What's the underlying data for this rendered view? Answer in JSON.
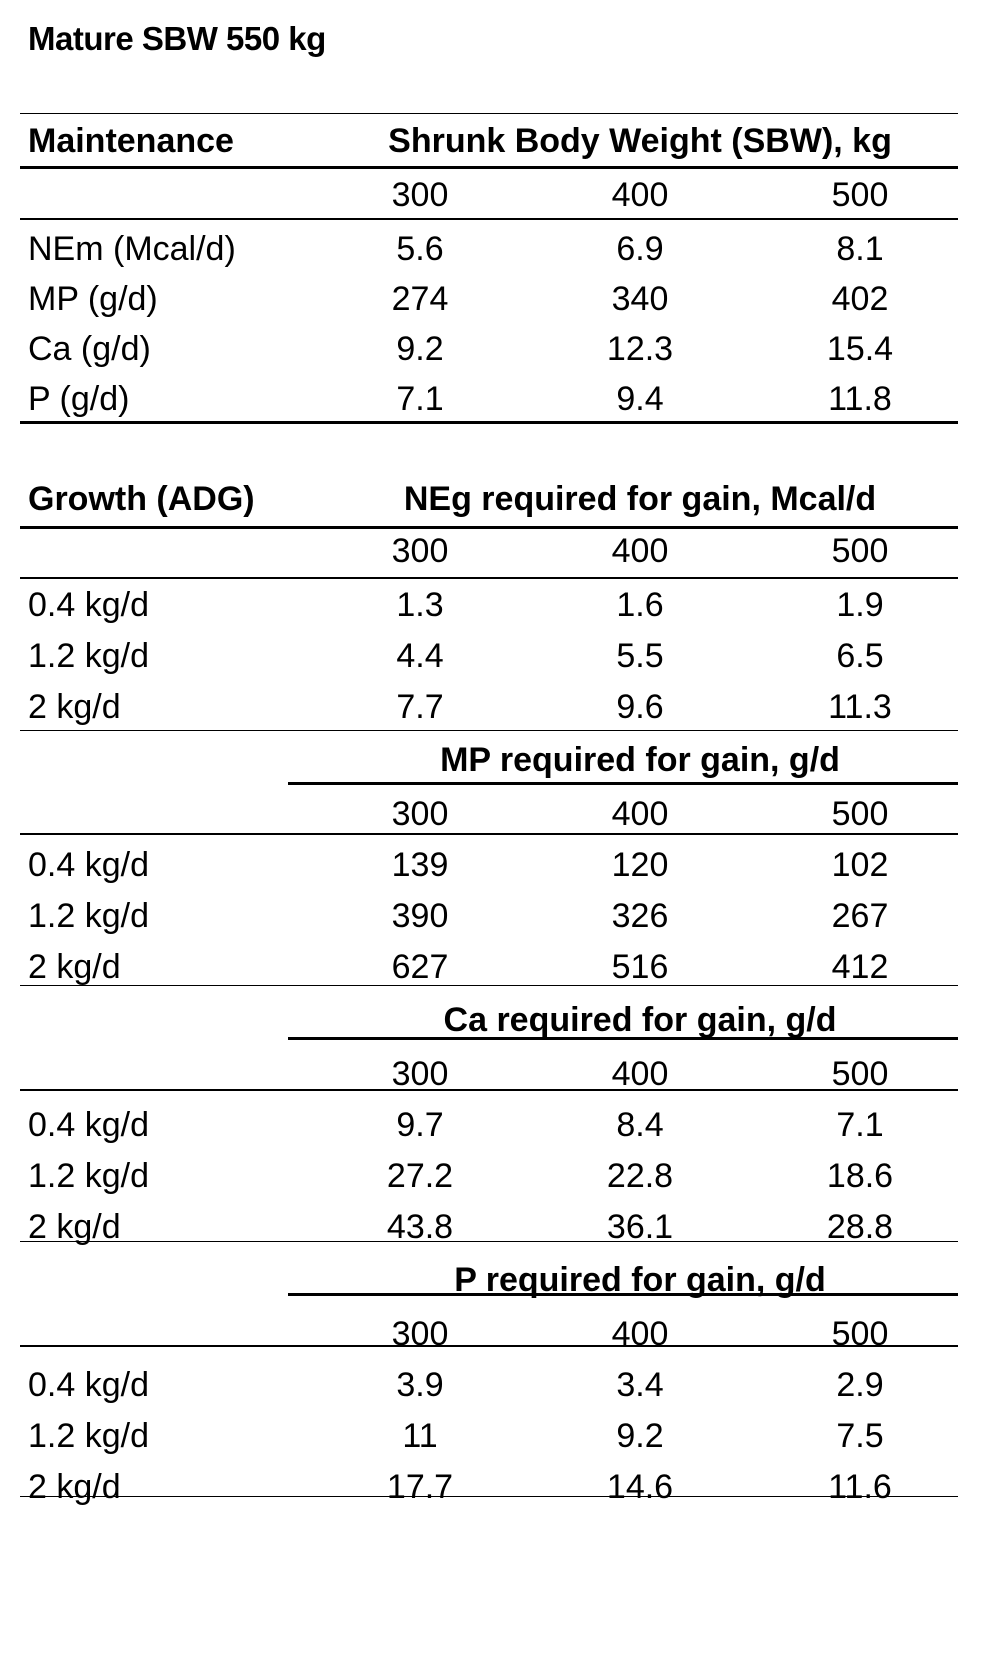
{
  "title": "Mature SBW 550 kg",
  "maintenance": {
    "row_label": "Maintenance",
    "header": "Shrunk Body Weight (SBW), kg",
    "weights": [
      "300",
      "400",
      "500"
    ],
    "rows": [
      {
        "label": "NEm (Mcal/d)",
        "values": [
          "5.6",
          "6.9",
          "8.1"
        ]
      },
      {
        "label": "MP (g/d)",
        "values": [
          "274",
          "340",
          "402"
        ]
      },
      {
        "label": "Ca (g/d)",
        "values": [
          "9.2",
          "12.3",
          "15.4"
        ]
      },
      {
        "label": "P (g/d)",
        "values": [
          "7.1",
          "9.4",
          "11.8"
        ]
      }
    ]
  },
  "growth": {
    "row_label": "Growth (ADG)",
    "sections": [
      {
        "header": "NEg required for gain, Mcal/d",
        "weights": [
          "300",
          "400",
          "500"
        ],
        "rows": [
          {
            "label": "0.4 kg/d",
            "values": [
              "1.3",
              "1.6",
              "1.9"
            ]
          },
          {
            "label": "1.2 kg/d",
            "values": [
              "4.4",
              "5.5",
              "6.5"
            ]
          },
          {
            "label": "2 kg/d",
            "values": [
              "7.7",
              "9.6",
              "11.3"
            ]
          }
        ]
      },
      {
        "header": "MP required for gain, g/d",
        "weights": [
          "300",
          "400",
          "500"
        ],
        "rows": [
          {
            "label": "0.4 kg/d",
            "values": [
              "139",
              "120",
              "102"
            ]
          },
          {
            "label": "1.2 kg/d",
            "values": [
              "390",
              "326",
              "267"
            ]
          },
          {
            "label": "2 kg/d",
            "values": [
              "627",
              "516",
              "412"
            ]
          }
        ]
      },
      {
        "header": "Ca required for gain, g/d",
        "weights": [
          "300",
          "400",
          "500"
        ],
        "rows": [
          {
            "label": "0.4 kg/d",
            "values": [
              "9.7",
              "8.4",
              "7.1"
            ]
          },
          {
            "label": "1.2 kg/d",
            "values": [
              "27.2",
              "22.8",
              "18.6"
            ]
          },
          {
            "label": "2 kg/d",
            "values": [
              "43.8",
              "36.1",
              "28.8"
            ]
          }
        ]
      },
      {
        "header": "P required for gain, g/d",
        "weights": [
          "300",
          "400",
          "500"
        ],
        "rows": [
          {
            "label": "0.4 kg/d",
            "values": [
              "3.9",
              "3.4",
              "2.9"
            ]
          },
          {
            "label": "1.2 kg/d",
            "values": [
              "11",
              "9.2",
              "7.5"
            ]
          },
          {
            "label": "2 kg/d",
            "values": [
              "17.7",
              "14.6",
              "11.6"
            ]
          }
        ]
      }
    ]
  }
}
